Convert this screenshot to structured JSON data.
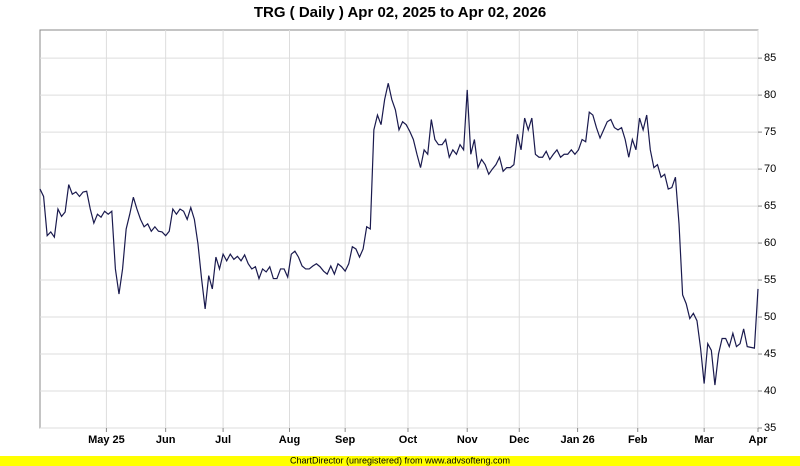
{
  "chart_data": {
    "type": "line",
    "title": "TRG ( Daily ) Apr 02, 2025 to Apr 02, 2026",
    "footer": "ChartDirector (unregistered) from www.advsofteng.com",
    "color": "#1a1a4e",
    "grid": true,
    "values": [
      67.3,
      66.3,
      61,
      61.5,
      60.8,
      64.6,
      63.6,
      64.2,
      67.9,
      66.6,
      66.9,
      66.3,
      66.9,
      67,
      64.6,
      62.7,
      63.9,
      63.5,
      64.3,
      63.9,
      64.3,
      56.5,
      53.1,
      56.5,
      61.9,
      63.9,
      66.2,
      64.6,
      63.2,
      62.2,
      62.6,
      61.6,
      62.2,
      61.6,
      61.5,
      61,
      61.6,
      64.6,
      63.9,
      64.6,
      64.3,
      63.2,
      64.8,
      63.2,
      59.9,
      55.2,
      51.1,
      55.6,
      53.8,
      58.1,
      56.5,
      58.5,
      57.6,
      58.5,
      57.8,
      58.2,
      57.6,
      58.4,
      57.2,
      56.5,
      56.8,
      55.2,
      56.5,
      56.1,
      56.8,
      55.2,
      55.2,
      56.5,
      56.5,
      55.4,
      58.5,
      58.9,
      58.1,
      56.9,
      56.5,
      56.5,
      56.9,
      57.2,
      56.8,
      56.2,
      55.8,
      56.9,
      55.8,
      57.2,
      56.8,
      56.2,
      57.2,
      59.5,
      59.2,
      58.1,
      59.2,
      62.2,
      61.9,
      75.3,
      77.3,
      76,
      79.4,
      81.6,
      79.4,
      78,
      75.3,
      76.4,
      76,
      75.1,
      74,
      72,
      70.2,
      72.6,
      72,
      76.7,
      74,
      73.3,
      73.3,
      74,
      71.6,
      72.6,
      72,
      73.3,
      72.6,
      80.7,
      72,
      74,
      70.2,
      71.3,
      70.6,
      69.3,
      70,
      70.6,
      71.6,
      69.7,
      70.2,
      70.2,
      70.6,
      74.7,
      72.6,
      76.9,
      75.3,
      76.9,
      72,
      71.6,
      71.6,
      72.4,
      71.3,
      72,
      72.6,
      71.6,
      72,
      72,
      72.6,
      72,
      72.6,
      74,
      73.7,
      77.7,
      77.3,
      75.6,
      74.2,
      75.3,
      76.4,
      76.7,
      75.6,
      75.3,
      75.6,
      74,
      71.6,
      74,
      72.6,
      76.9,
      75.3,
      77.3,
      72.6,
      70.2,
      70.6,
      68.9,
      69.3,
      67.3,
      67.5,
      68.9,
      62.6,
      53,
      51.8,
      49.8,
      50.5,
      49.5,
      45.8,
      41,
      46.4,
      45.5,
      40.8,
      45,
      47.1,
      47.1,
      46,
      47.8,
      46,
      46.4,
      48.4,
      46,
      45.9,
      45.8,
      53.8
    ],
    "xlim": [
      0,
      200
    ],
    "xticks": [
      {
        "value": 18.5,
        "label": "May 25"
      },
      {
        "value": 35,
        "label": "Jun"
      },
      {
        "value": 51,
        "label": "Jul"
      },
      {
        "value": 69.5,
        "label": "Aug"
      },
      {
        "value": 85,
        "label": "Sep"
      },
      {
        "value": 102.5,
        "label": "Oct"
      },
      {
        "value": 119,
        "label": "Nov"
      },
      {
        "value": 133.5,
        "label": "Dec"
      },
      {
        "value": 149.75,
        "label": "Jan 26"
      },
      {
        "value": 166.5,
        "label": "Feb"
      },
      {
        "value": 185,
        "label": "Mar"
      },
      {
        "value": 200,
        "label": "Apr"
      }
    ],
    "ylim": [
      35,
      88.8
    ],
    "yticks": [
      35,
      40,
      45,
      50,
      55,
      60,
      65,
      70,
      75,
      80,
      85
    ]
  }
}
